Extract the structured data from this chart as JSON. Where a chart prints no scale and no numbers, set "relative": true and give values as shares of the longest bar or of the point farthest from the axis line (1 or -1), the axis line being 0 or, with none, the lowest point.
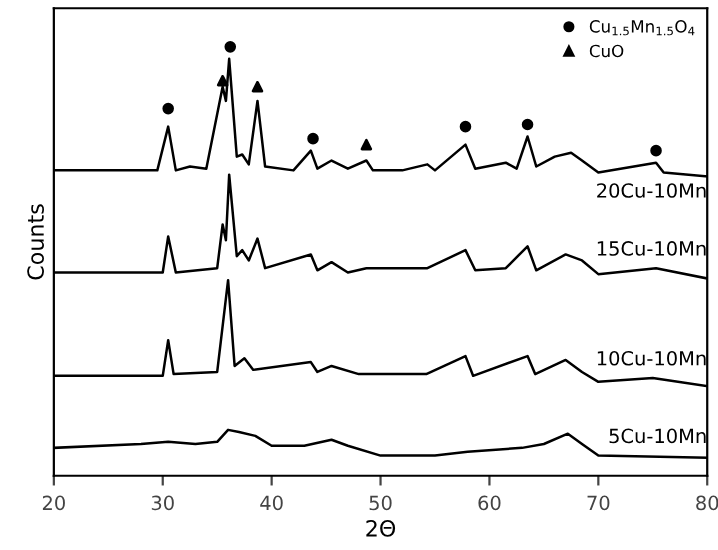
{
  "chart_data": {
    "type": "line",
    "xlabel": "2Θ",
    "ylabel": "Counts",
    "relative": true,
    "xlim": [
      20,
      80
    ],
    "xticks": [
      20,
      30,
      40,
      50,
      60,
      70,
      80
    ],
    "grid": false,
    "legend": "top right",
    "marker": "none",
    "line_style": "solid",
    "series": [
      {
        "name": "20Cu-10Mn",
        "color": "#000000",
        "x": [
          20,
          25,
          29.5,
          30.5,
          31.2,
          32.5,
          34,
          35.5,
          35.8,
          36.1,
          36.8,
          37.3,
          37.9,
          38.7,
          39.4,
          42,
          43.6,
          44.2,
          45.5,
          47,
          48.7,
          49.3,
          52,
          54.3,
          55,
          57.8,
          58.7,
          61.5,
          62.5,
          63.5,
          64.3,
          66,
          67.5,
          68.5,
          70,
          75.3,
          76,
          80
        ],
        "values": [
          0.712,
          0.712,
          0.712,
          0.814,
          0.712,
          0.721,
          0.716,
          0.907,
          0.874,
          0.972,
          0.744,
          0.749,
          0.726,
          0.874,
          0.721,
          0.712,
          0.758,
          0.716,
          0.735,
          0.716,
          0.735,
          0.712,
          0.712,
          0.726,
          0.712,
          0.772,
          0.716,
          0.73,
          0.716,
          0.791,
          0.721,
          0.744,
          0.753,
          0.735,
          0.707,
          0.73,
          0.707,
          0.698
        ]
      },
      {
        "name": "15Cu-10Mn",
        "color": "#000000",
        "x": [
          20,
          30,
          30.5,
          31.2,
          35,
          35.5,
          35.8,
          36.1,
          36.8,
          37.3,
          37.9,
          38.7,
          39.4,
          43.6,
          44.2,
          45.5,
          47,
          48.7,
          54.3,
          57.8,
          58.7,
          61.5,
          63.5,
          64.3,
          67,
          68.5,
          70,
          75.3,
          80
        ],
        "values": [
          0.474,
          0.474,
          0.558,
          0.474,
          0.484,
          0.586,
          0.549,
          0.702,
          0.512,
          0.526,
          0.502,
          0.553,
          0.484,
          0.516,
          0.479,
          0.498,
          0.474,
          0.484,
          0.484,
          0.526,
          0.479,
          0.484,
          0.535,
          0.479,
          0.516,
          0.502,
          0.47,
          0.484,
          0.46
        ]
      },
      {
        "name": "10Cu-10Mn",
        "color": "#000000",
        "x": [
          20,
          30,
          30.5,
          31,
          35,
          36,
          36.6,
          37.5,
          38.3,
          43.6,
          44.2,
          45.5,
          48,
          54.2,
          57.8,
          58.5,
          63.5,
          64.2,
          67,
          68.5,
          70,
          75,
          80
        ],
        "values": [
          0.233,
          0.233,
          0.316,
          0.237,
          0.242,
          0.456,
          0.256,
          0.274,
          0.247,
          0.265,
          0.242,
          0.256,
          0.237,
          0.237,
          0.279,
          0.233,
          0.279,
          0.237,
          0.27,
          0.242,
          0.219,
          0.228,
          0.209
        ]
      },
      {
        "name": "5Cu-10Mn",
        "color": "#000000",
        "x": [
          20,
          28,
          30.5,
          33,
          35,
          36,
          37,
          38.5,
          40,
          43,
          45.5,
          47,
          50,
          55,
          58,
          63,
          65,
          67.2,
          68.5,
          70,
          80
        ],
        "values": [
          0.065,
          0.074,
          0.079,
          0.074,
          0.079,
          0.107,
          0.102,
          0.093,
          0.07,
          0.07,
          0.084,
          0.07,
          0.047,
          0.047,
          0.056,
          0.065,
          0.074,
          0.098,
          0.074,
          0.047,
          0.042
        ]
      },
      {
        "name": "Cu$_{1.5}$Mn$_{1.5}$O$_{4}$",
        "type": "scatter",
        "marker": "circle",
        "color": "#000000",
        "x": [
          30.5,
          36.2,
          43.8,
          57.8,
          63.5,
          75.3
        ],
        "values": [
          0.856,
          1.0,
          0.786,
          0.814,
          0.819,
          0.758
        ]
      },
      {
        "name": "CuO",
        "type": "scatter",
        "marker": "triangle",
        "color": "#000000",
        "x": [
          35.5,
          38.7,
          48.7
        ],
        "values": [
          0.921,
          0.907,
          0.772
        ]
      }
    ]
  }
}
